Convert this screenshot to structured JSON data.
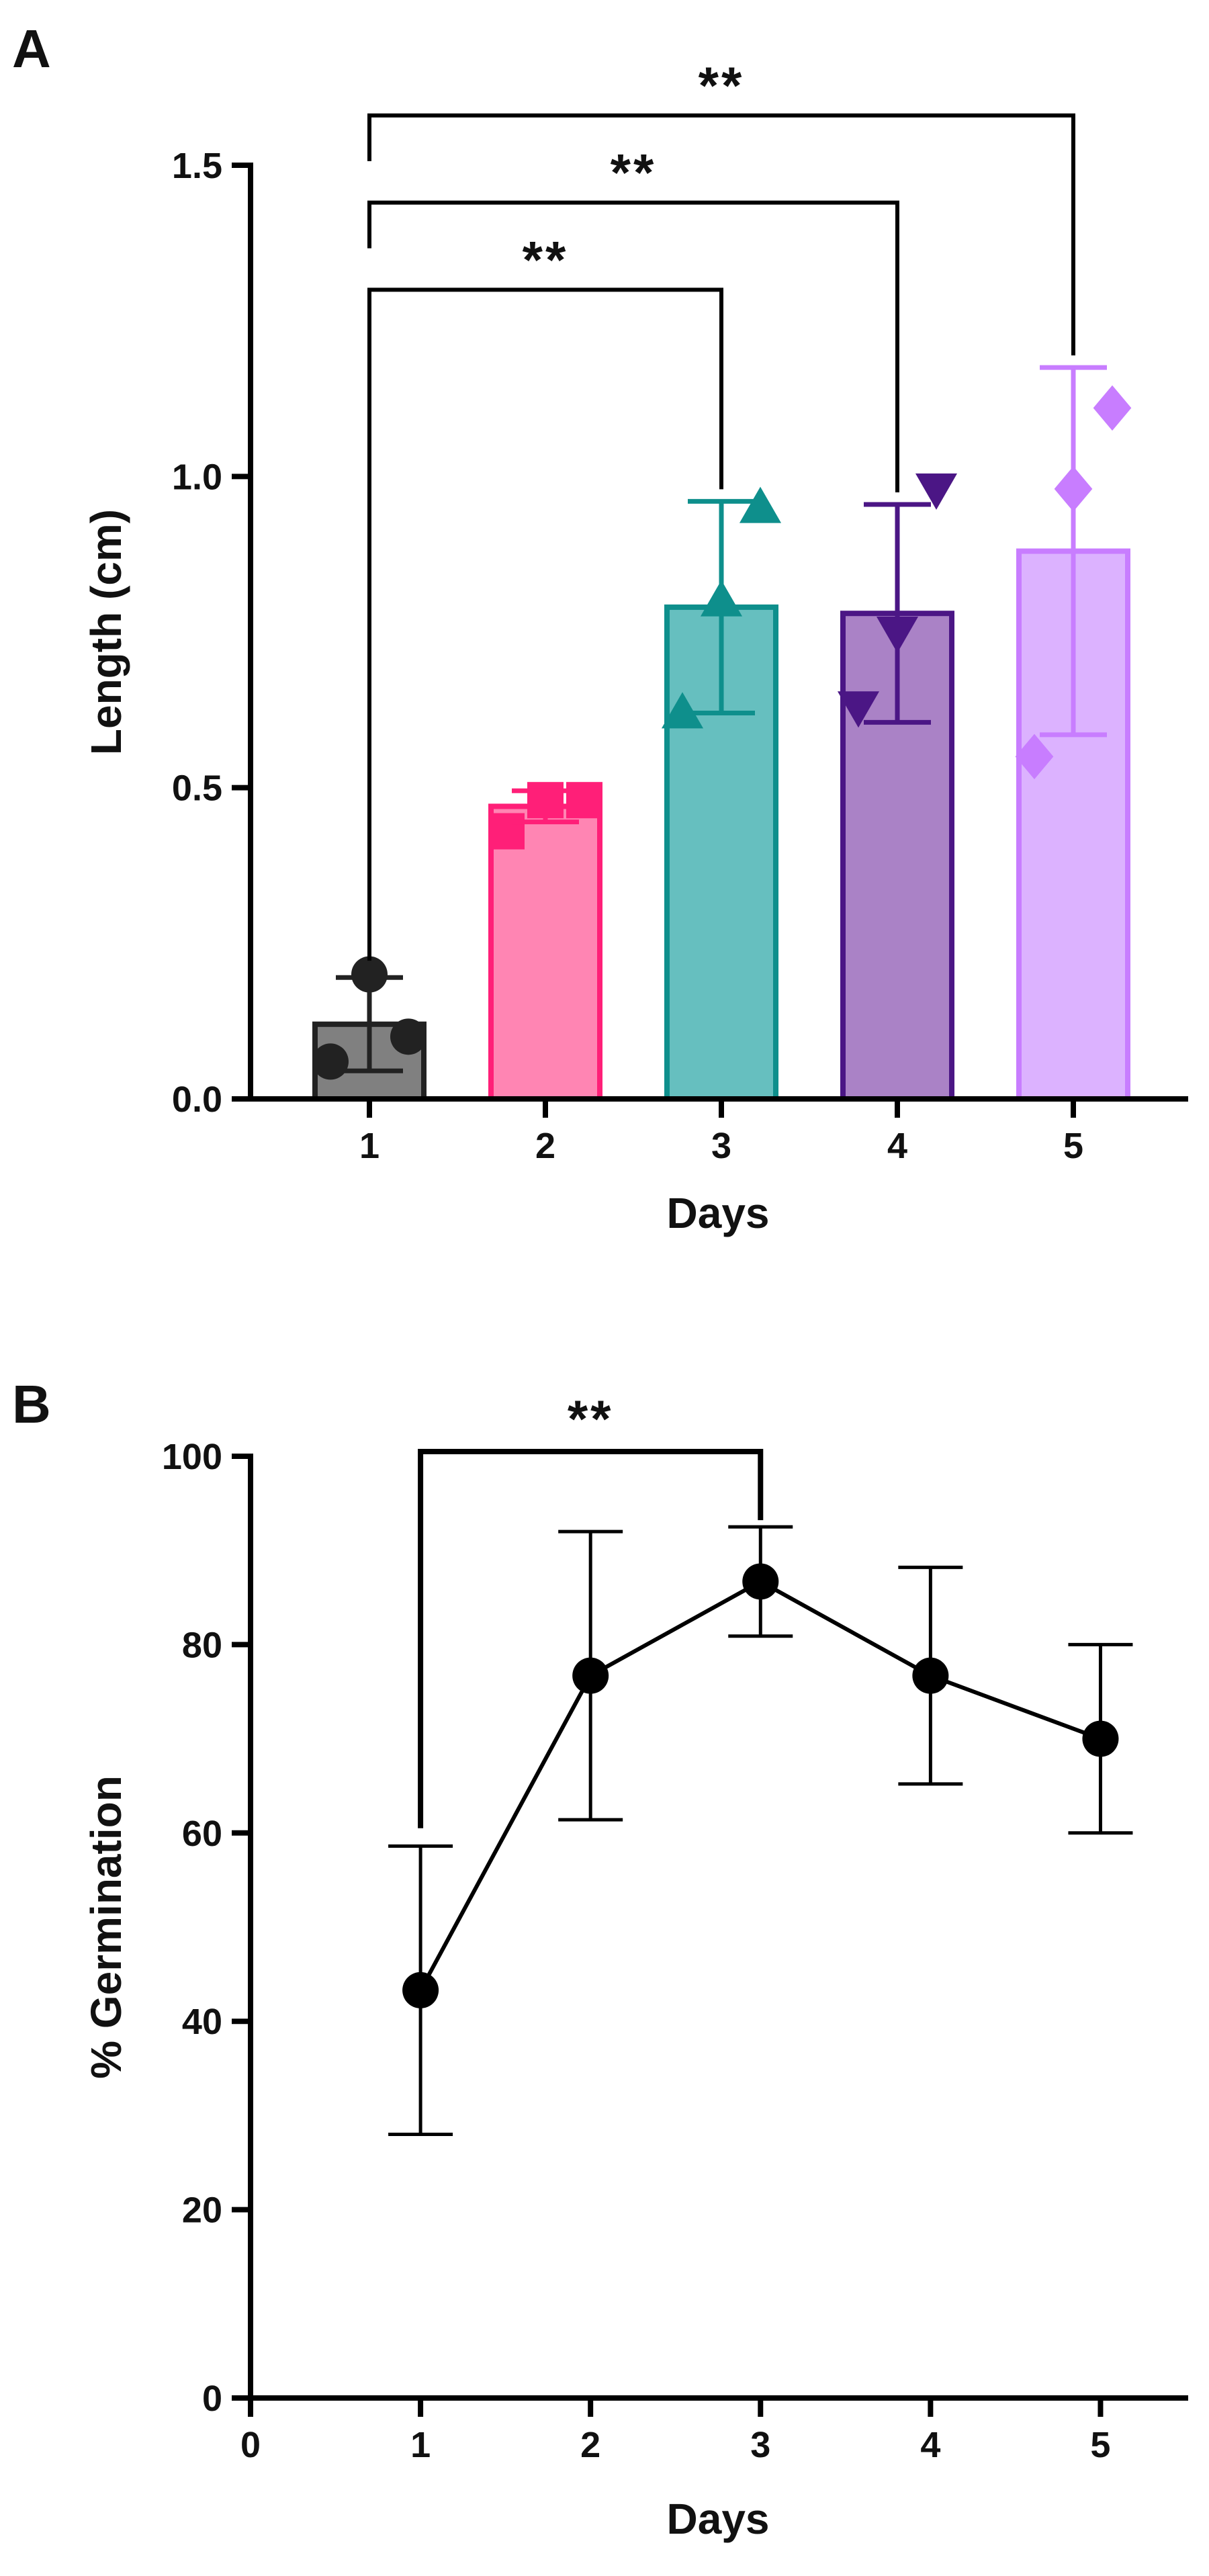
{
  "panels": [
    {
      "letter": "A"
    },
    {
      "letter": "B"
    }
  ],
  "chart_data": [
    {
      "type": "bar",
      "panel": "A",
      "xlabel": "Days",
      "ylabel": "Length (cm)",
      "ylim": [
        0,
        1.5
      ],
      "yticks": [
        0.0,
        0.5,
        1.0,
        1.5
      ],
      "ytick_labels": [
        "0.0",
        "0.5",
        "1.0",
        "1.5"
      ],
      "categories": [
        "1",
        "2",
        "3",
        "4",
        "5"
      ],
      "values": [
        0.12,
        0.47,
        0.79,
        0.78,
        0.88
      ],
      "errors": [
        0.075,
        0.025,
        0.17,
        0.175,
        0.295
      ],
      "bar_fill": [
        "#808080",
        "#ff85b3",
        "#66bfbf",
        "#aa82c6",
        "#dcb2ff"
      ],
      "bar_stroke": [
        "#222222",
        "#ff1f78",
        "#0e8f8c",
        "#4b1685",
        "#c87dff"
      ],
      "markers": [
        "circle",
        "square",
        "triangle-up",
        "triangle-down",
        "diamond"
      ],
      "points": [
        [
          0.06,
          0.2,
          0.1
        ],
        [
          0.43,
          0.48,
          0.48
        ],
        [
          0.62,
          0.8,
          0.95
        ],
        [
          0.63,
          0.75,
          0.98
        ],
        [
          0.55,
          0.98,
          1.11
        ]
      ],
      "significance": [
        {
          "from": "1",
          "to": "3",
          "label": "**",
          "level": 1.3
        },
        {
          "from": "1",
          "to": "4",
          "label": "**",
          "level": 1.44
        },
        {
          "from": "1",
          "to": "5",
          "label": "**",
          "level": 1.58
        }
      ]
    },
    {
      "type": "line",
      "panel": "B",
      "xlabel": "Days",
      "ylabel": "% Germination",
      "xlim": [
        0,
        5.5
      ],
      "ylim": [
        0,
        100
      ],
      "xticks": [
        0,
        1,
        2,
        3,
        4,
        5
      ],
      "xtick_labels": [
        "0",
        "1",
        "2",
        "3",
        "4",
        "5"
      ],
      "yticks": [
        0,
        20,
        40,
        60,
        80,
        100
      ],
      "ytick_labels": [
        "0",
        "20",
        "40",
        "60",
        "80",
        "100"
      ],
      "x": [
        1,
        2,
        3,
        4,
        5
      ],
      "y": [
        43.3,
        76.7,
        86.7,
        76.7,
        70.0
      ],
      "errors": [
        15.3,
        15.3,
        5.8,
        11.5,
        10.0
      ],
      "significance": [
        {
          "from": 1,
          "to": 3,
          "label": "**",
          "level": 100.5,
          "drop_to": 60.5
        }
      ]
    }
  ]
}
